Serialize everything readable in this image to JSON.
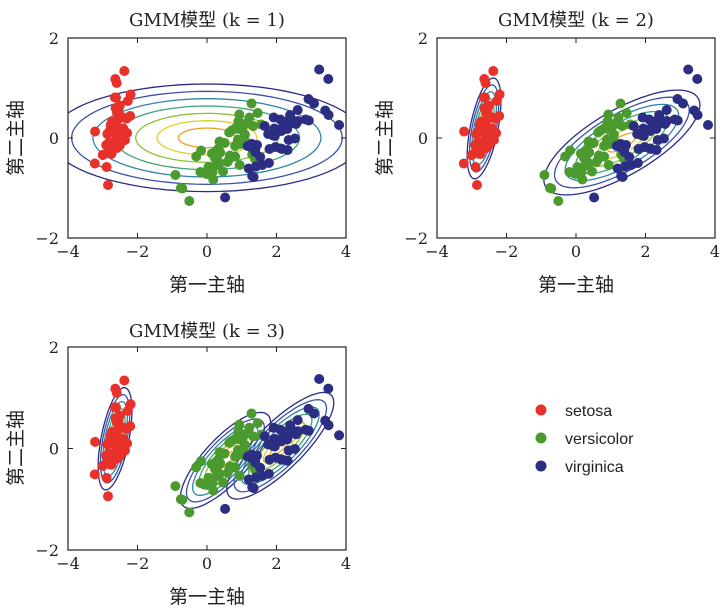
{
  "chart_data": [
    {
      "type": "scatter",
      "title": "GMM模型 (k = 1)",
      "xlabel": "第一主轴",
      "ylabel": "第二主轴",
      "xlim": [
        -4,
        4
      ],
      "ylim": [
        -2,
        2
      ],
      "xticks": [
        "−4",
        "−2",
        "0",
        "2",
        "4"
      ],
      "yticks": [
        "−2",
        "0",
        "2"
      ],
      "k": 1
    },
    {
      "type": "scatter",
      "title": "GMM模型 (k = 2)",
      "xlabel": "第一主轴",
      "ylabel": "第二主轴",
      "xlim": [
        -4,
        4
      ],
      "ylim": [
        -2,
        2
      ],
      "xticks": [
        "−4",
        "−2",
        "0",
        "2",
        "4"
      ],
      "yticks": [
        "−2",
        "0",
        "2"
      ],
      "k": 2
    },
    {
      "type": "scatter",
      "title": "GMM模型 (k = 3)",
      "xlabel": "第一主轴",
      "ylabel": "第二主轴",
      "xlim": [
        -4,
        4
      ],
      "ylim": [
        -2,
        2
      ],
      "xticks": [
        "−4",
        "−2",
        "0",
        "2",
        "4"
      ],
      "yticks": [
        "−2",
        "0",
        "2"
      ],
      "k": 3
    }
  ],
  "series": [
    {
      "name": "setosa",
      "color": "#e8312b",
      "points": [
        [
          -2.7,
          0.32
        ],
        [
          -2.75,
          -0.18
        ],
        [
          -2.9,
          -0.14
        ],
        [
          -2.75,
          -0.32
        ],
        [
          -2.73,
          0.33
        ],
        [
          -2.28,
          0.74
        ],
        [
          -2.82,
          -0.09
        ],
        [
          -2.63,
          0.16
        ],
        [
          -2.89,
          -0.58
        ],
        [
          -2.67,
          -0.11
        ],
        [
          -2.51,
          0.65
        ],
        [
          -2.61,
          0.01
        ],
        [
          -2.79,
          -0.24
        ],
        [
          -3.23,
          -0.51
        ],
        [
          -2.64,
          1.18
        ],
        [
          -2.38,
          1.34
        ],
        [
          -2.62,
          0.81
        ],
        [
          -2.65,
          0.31
        ],
        [
          -2.2,
          0.87
        ],
        [
          -2.59,
          0.51
        ],
        [
          -2.31,
          0.39
        ],
        [
          -2.54,
          0.43
        ],
        [
          -3.22,
          0.13
        ],
        [
          -2.3,
          0.1
        ],
        [
          -2.36,
          -0.04
        ],
        [
          -2.51,
          -0.15
        ],
        [
          -2.47,
          0.13
        ],
        [
          -2.56,
          0.37
        ],
        [
          -2.64,
          0.31
        ],
        [
          -2.63,
          -0.19
        ],
        [
          -2.59,
          -0.2
        ],
        [
          -2.41,
          0.41
        ],
        [
          -2.65,
          0.81
        ],
        [
          -2.6,
          1.1
        ],
        [
          -2.67,
          -0.11
        ],
        [
          -2.87,
          0.08
        ],
        [
          -2.63,
          0.6
        ],
        [
          -2.8,
          0.14
        ],
        [
          -3,
          -0.34
        ],
        [
          -2.59,
          0.23
        ],
        [
          -2.77,
          0.26
        ],
        [
          -2.85,
          -0.94
        ],
        [
          -3,
          -0.34
        ],
        [
          -2.41,
          0.19
        ],
        [
          -2.21,
          0.44
        ],
        [
          -2.72,
          -0.25
        ],
        [
          -2.54,
          0.5
        ],
        [
          -2.84,
          -0.23
        ],
        [
          -2.54,
          0.59
        ],
        [
          -2.7,
          0.11
        ]
      ]
    },
    {
      "name": "versicolor",
      "color": "#4a9a2e",
      "points": [
        [
          1.28,
          0.69
        ],
        [
          0.93,
          0.32
        ],
        [
          1.46,
          0.5
        ],
        [
          0.18,
          -0.83
        ],
        [
          1.09,
          0.07
        ],
        [
          0.64,
          -0.42
        ],
        [
          1.1,
          0.28
        ],
        [
          -0.75,
          -1.0
        ],
        [
          1.04,
          0.23
        ],
        [
          -0.01,
          -0.72
        ],
        [
          -0.51,
          -1.26
        ],
        [
          0.51,
          -0.1
        ],
        [
          0.26,
          -0.55
        ],
        [
          0.98,
          -0.12
        ],
        [
          -0.17,
          -0.25
        ],
        [
          0.93,
          0.47
        ],
        [
          0.66,
          -0.35
        ],
        [
          0.23,
          -0.33
        ],
        [
          0.94,
          -0.54
        ],
        [
          0.04,
          -0.58
        ],
        [
          1.12,
          -0.08
        ],
        [
          0.36,
          -0.07
        ],
        [
          1.3,
          -0.33
        ],
        [
          0.92,
          0.18
        ],
        [
          0.71,
          0.15
        ],
        [
          0.9,
          0.33
        ],
        [
          1.33,
          0.24
        ],
        [
          1.56,
          0.27
        ],
        [
          0.81,
          -0.16
        ],
        [
          -0.31,
          -0.37
        ],
        [
          -0.07,
          -0.7
        ],
        [
          -0.19,
          -0.68
        ],
        [
          0.14,
          -0.31
        ],
        [
          1.38,
          -0.42
        ],
        [
          0.59,
          -0.48
        ],
        [
          0.81,
          0.19
        ],
        [
          1.22,
          0.41
        ],
        [
          0.81,
          -0.37
        ],
        [
          0.25,
          -0.27
        ],
        [
          0.16,
          -0.68
        ],
        [
          0.46,
          -0.67
        ],
        [
          0.89,
          -0.03
        ],
        [
          0.23,
          -0.4
        ],
        [
          -0.71,
          -1.01
        ],
        [
          0.36,
          -0.5
        ],
        [
          0.33,
          -0.21
        ],
        [
          0.38,
          -0.29
        ],
        [
          0.64,
          0.11
        ],
        [
          -0.91,
          -0.74
        ],
        [
          0.3,
          -0.35
        ]
      ]
    },
    {
      "name": "virginica",
      "color": "#2b2e83",
      "points": [
        [
          2.53,
          -0.01
        ],
        [
          1.41,
          -0.57
        ],
        [
          2.62,
          0.34
        ],
        [
          1.97,
          -0.18
        ],
        [
          2.35,
          -0.04
        ],
        [
          3.4,
          0.55
        ],
        [
          0.52,
          -1.19
        ],
        [
          2.93,
          0.35
        ],
        [
          2.32,
          -0.24
        ],
        [
          2.92,
          0.78
        ],
        [
          1.66,
          0.24
        ],
        [
          1.8,
          -0.22
        ],
        [
          2.17,
          0.21
        ],
        [
          1.34,
          -0.78
        ],
        [
          1.59,
          -0.54
        ],
        [
          1.9,
          0.12
        ],
        [
          1.95,
          0.04
        ],
        [
          3.49,
          1.18
        ],
        [
          3.8,
          0.26
        ],
        [
          1.3,
          -0.76
        ],
        [
          2.43,
          0.38
        ],
        [
          1.2,
          -0.61
        ],
        [
          3.5,
          0.46
        ],
        [
          1.39,
          -0.2
        ],
        [
          2.28,
          0.33
        ],
        [
          2.61,
          0.56
        ],
        [
          1.26,
          -0.18
        ],
        [
          1.29,
          -0.12
        ],
        [
          2.12,
          -0.21
        ],
        [
          2.39,
          0.46
        ],
        [
          2.84,
          0.37
        ],
        [
          3.23,
          1.37
        ],
        [
          2.16,
          -0.22
        ],
        [
          1.44,
          -0.14
        ],
        [
          1.78,
          -0.5
        ],
        [
          3.08,
          0.69
        ],
        [
          2.14,
          0.14
        ],
        [
          1.9,
          0.05
        ],
        [
          1.17,
          -0.16
        ],
        [
          2.11,
          0.37
        ],
        [
          2.31,
          0.18
        ],
        [
          1.92,
          0.41
        ],
        [
          1.41,
          -0.57
        ],
        [
          2.56,
          0.28
        ],
        [
          2.42,
          0.3
        ],
        [
          1.94,
          0.19
        ],
        [
          1.53,
          -0.38
        ],
        [
          1.76,
          0.08
        ],
        [
          1.9,
          0.12
        ],
        [
          1.39,
          -0.28
        ]
      ]
    }
  ],
  "legend": {
    "items": [
      {
        "label": "setosa",
        "color": "#e8312b"
      },
      {
        "label": "versicolor",
        "color": "#4a9a2e"
      },
      {
        "label": "virginica",
        "color": "#2b2e83"
      }
    ]
  }
}
